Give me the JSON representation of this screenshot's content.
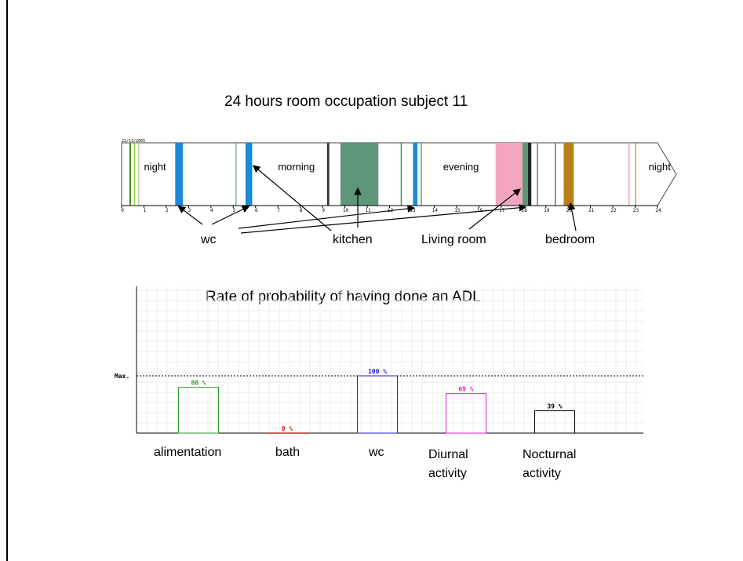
{
  "slide": {
    "timeline_title": "24 hours room occupation  subject 11",
    "date_stamp": "22/11/2005",
    "period_labels": [
      {
        "text": "night",
        "hour": 1.0
      },
      {
        "text": "morning",
        "hour": 7.0
      },
      {
        "text": "evening",
        "hour": 14.4
      },
      {
        "text": "night",
        "hour": 23.6
      }
    ],
    "room_labels": {
      "wc": "wc",
      "kitchen": "kitchen",
      "living_room": "Living room",
      "bedroom": "bedroom"
    },
    "timeline_ticks": [
      "0",
      "1",
      "2",
      "3",
      "4",
      "5",
      "6",
      "7",
      "8",
      "9",
      "10",
      "11",
      "12",
      "13",
      "14",
      "15",
      "16",
      "17",
      "18",
      "19",
      "20",
      "21",
      "22",
      "23",
      "24"
    ],
    "occupation_segments": [
      {
        "room": "other",
        "start": 0.35,
        "end": 0.42,
        "color": "#3a8a2a"
      },
      {
        "room": "other",
        "start": 0.55,
        "end": 0.6,
        "color": "#9acd32"
      },
      {
        "room": "other",
        "start": 0.75,
        "end": 0.78,
        "color": "#8fbc8f"
      },
      {
        "room": "wc",
        "start": 2.4,
        "end": 2.75,
        "color": "#1a8ad8"
      },
      {
        "room": "other",
        "start": 5.1,
        "end": 5.15,
        "color": "#7aa"
      },
      {
        "room": "wc",
        "start": 5.55,
        "end": 5.85,
        "color": "#1a8ad8"
      },
      {
        "room": "other",
        "start": 9.2,
        "end": 9.3,
        "color": "#333333"
      },
      {
        "room": "kitchen",
        "start": 9.8,
        "end": 11.5,
        "color": "#5f9679"
      },
      {
        "room": "other",
        "start": 12.5,
        "end": 12.55,
        "color": "#3a8a5a"
      },
      {
        "room": "wc",
        "start": 13.05,
        "end": 13.25,
        "color": "#1a8ad8"
      },
      {
        "room": "other",
        "start": 13.4,
        "end": 13.45,
        "color": "#4a9a8a"
      },
      {
        "room": "living room",
        "start": 16.75,
        "end": 17.95,
        "color": "#f4a6c0"
      },
      {
        "room": "other",
        "start": 17.95,
        "end": 18.2,
        "color": "#5f9679"
      },
      {
        "room": "other",
        "start": 18.2,
        "end": 18.35,
        "color": "#222222"
      },
      {
        "room": "other",
        "start": 18.6,
        "end": 18.65,
        "color": "#3a8a8a"
      },
      {
        "room": "other",
        "start": 19.4,
        "end": 19.45,
        "color": "#666666"
      },
      {
        "room": "bedroom",
        "start": 19.8,
        "end": 20.25,
        "color": "#b8801a"
      },
      {
        "room": "other",
        "start": 22.7,
        "end": 22.75,
        "color": "#f0a0b0"
      },
      {
        "room": "other",
        "start": 23.0,
        "end": 23.05,
        "color": "#e08a3a"
      }
    ],
    "adl_title": "Rate of probability of having done an ADL",
    "max_label": "Max.",
    "category_labels": [
      "alimentation",
      "bath",
      "wc",
      "Diurnal activity",
      "Nocturnal activity"
    ]
  },
  "chart_data": {
    "type": "bar",
    "title": "Rate of probability of having done an ADL",
    "categories": [
      "alimentation",
      "bath",
      "wc",
      "Diurnal activity",
      "Nocturnal activity"
    ],
    "values": [
      80,
      0,
      100,
      69,
      39
    ],
    "value_labels": [
      "80 %",
      "0 %",
      "100 %",
      "69 %",
      "39 %"
    ],
    "bar_colors": [
      "#2e9a2e",
      "#e02020",
      "#2020e0",
      "#e020e0",
      "#000000"
    ],
    "ylim": [
      0,
      100
    ],
    "grid": true,
    "max_line": "Max."
  }
}
